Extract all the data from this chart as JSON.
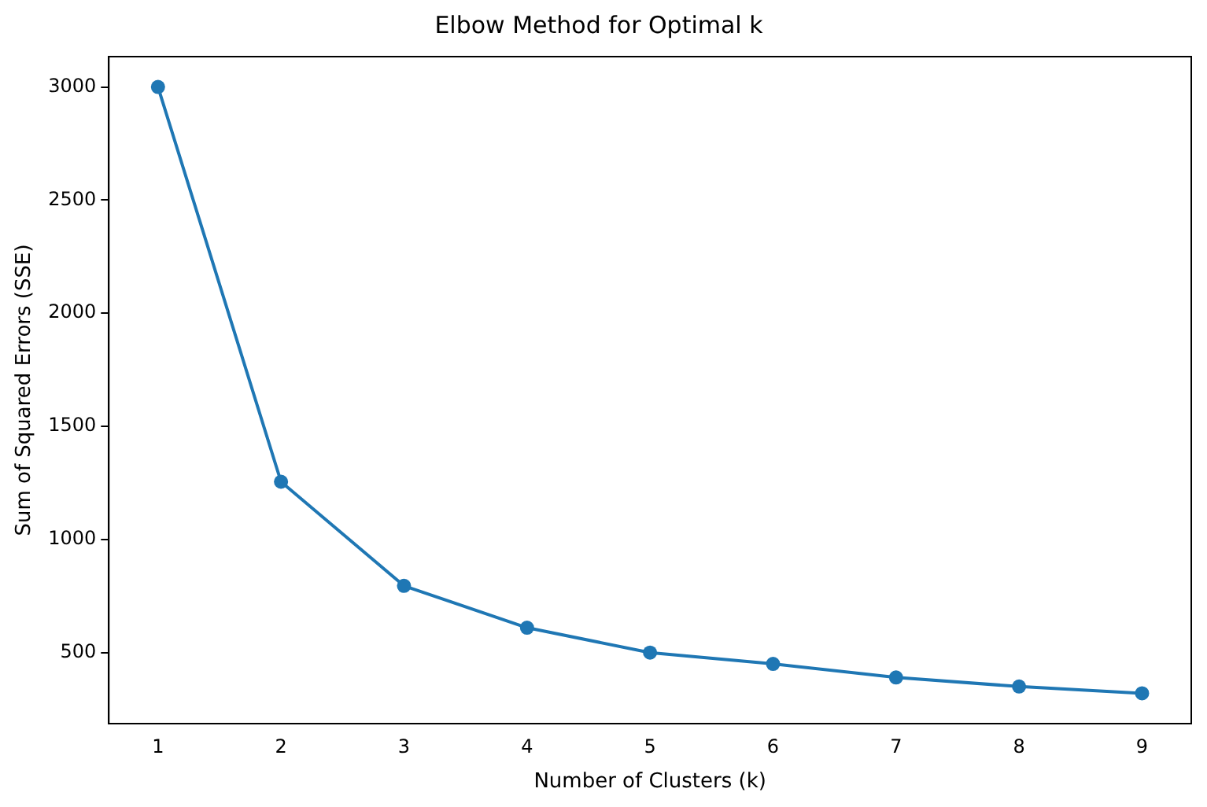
{
  "chart_data": {
    "type": "line",
    "title": "Elbow Method for Optimal k",
    "xlabel": "Number of Clusters (k)",
    "ylabel": "Sum of Squared Errors (SSE)",
    "x": [
      1,
      2,
      3,
      4,
      5,
      6,
      7,
      8,
      9
    ],
    "series": [
      {
        "color": "#1f77b4",
        "values": [
          3000,
          1255,
          795,
          610,
          500,
          450,
          390,
          350,
          320
        ]
      }
    ],
    "xlim": [
      0.6,
      9.4
    ],
    "xticks": [
      1,
      2,
      3,
      4,
      5,
      6,
      7,
      8,
      9
    ],
    "ylim": [
      186,
      3134
    ],
    "yticks": [
      500,
      1000,
      1500,
      2000,
      2500,
      3000
    ],
    "marker": "circle",
    "line_style": "solid",
    "grid": false,
    "legend": false
  }
}
